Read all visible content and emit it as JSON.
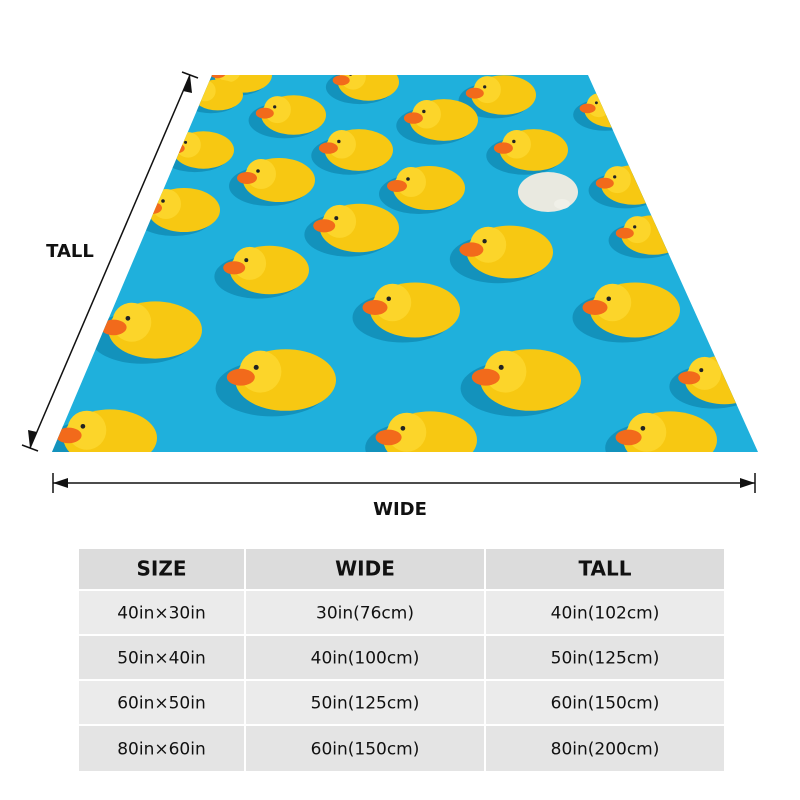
{
  "dimensions": {
    "tall": "TALL",
    "wide": "WIDE"
  },
  "table": {
    "header": [
      "SIZE",
      "WIDE",
      "TALL"
    ],
    "rows": [
      [
        "40in×30in",
        "30in(76cm)",
        "40in(102cm)"
      ],
      [
        "50in×40in",
        "40in(100cm)",
        "50in(125cm)"
      ],
      [
        "60in×50in",
        "50in(125cm)",
        "60in(150cm)"
      ],
      [
        "80in×60in",
        "60in(150cm)",
        "80in(200cm)"
      ]
    ]
  }
}
